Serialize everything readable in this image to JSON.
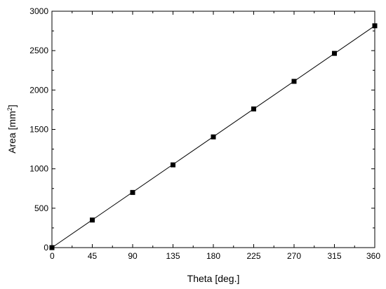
{
  "chart_data": {
    "type": "scatter",
    "title": "",
    "xlabel": "Theta [deg.]",
    "ylabel_main": "Area [mm",
    "ylabel_sup": "2",
    "ylabel_end": "]",
    "xlim": [
      0,
      360
    ],
    "ylim": [
      0,
      3000
    ],
    "xticks": [
      "0",
      "45",
      "90",
      "135",
      "180",
      "225",
      "270",
      "315",
      "360"
    ],
    "yticks": [
      "0",
      "500",
      "1000",
      "1500",
      "2000",
      "2500",
      "3000"
    ],
    "grid": false,
    "legend": false,
    "series": [
      {
        "marker": "square",
        "color": "#000000",
        "x": [
          0,
          45,
          90,
          135,
          180,
          225,
          270,
          315,
          360
        ],
        "y": [
          0,
          350,
          700,
          1050,
          1405,
          1760,
          2110,
          2465,
          2815
        ]
      }
    ],
    "fit_line": {
      "color": "#000000",
      "x": [
        0,
        360
      ],
      "y": [
        0,
        2815
      ]
    }
  }
}
